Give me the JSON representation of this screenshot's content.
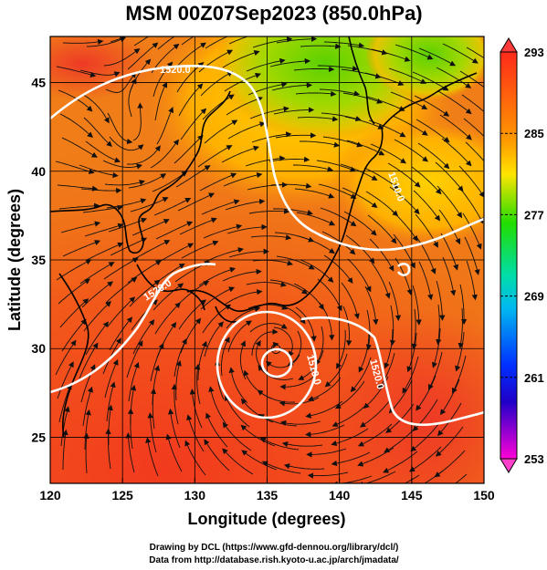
{
  "title": "MSM 00Z07Sep2023 (850.0hPa)",
  "map": {
    "x_axis": {
      "label": "Longitude (degrees)",
      "range": [
        120,
        150
      ],
      "ticks": [
        "120",
        "125",
        "130",
        "135",
        "140",
        "145",
        "150"
      ]
    },
    "y_axis": {
      "label": "Latitude  (degrees)",
      "range": [
        22.4,
        47.6
      ],
      "ticks": [
        "25",
        "30",
        "35",
        "40",
        "45"
      ]
    },
    "grid": true,
    "shaded_field_range": [
      253,
      293
    ],
    "contour_labels": [
      "1520.0",
      "1500.0",
      "1510.0",
      "1520.0",
      "1510.0",
      "1520.0",
      "1510.0"
    ],
    "low_center": {
      "lon": 135.6,
      "lat": 30.0
    }
  },
  "colorbar": {
    "ticks": [
      "293",
      "285",
      "277",
      "269",
      "261",
      "253"
    ],
    "colors": [
      "#ff2020",
      "#ff9b00",
      "#ffee00",
      "#22dd00",
      "#00c0e0",
      "#0030ff",
      "#e000e0"
    ]
  },
  "credits": {
    "line1": "Drawing by DCL (https://www.gfd-dennou.org/library/dcl/)",
    "line2": "Data from http://database.rish.kyoto-u.ac.jp/arch/jmadata/"
  }
}
